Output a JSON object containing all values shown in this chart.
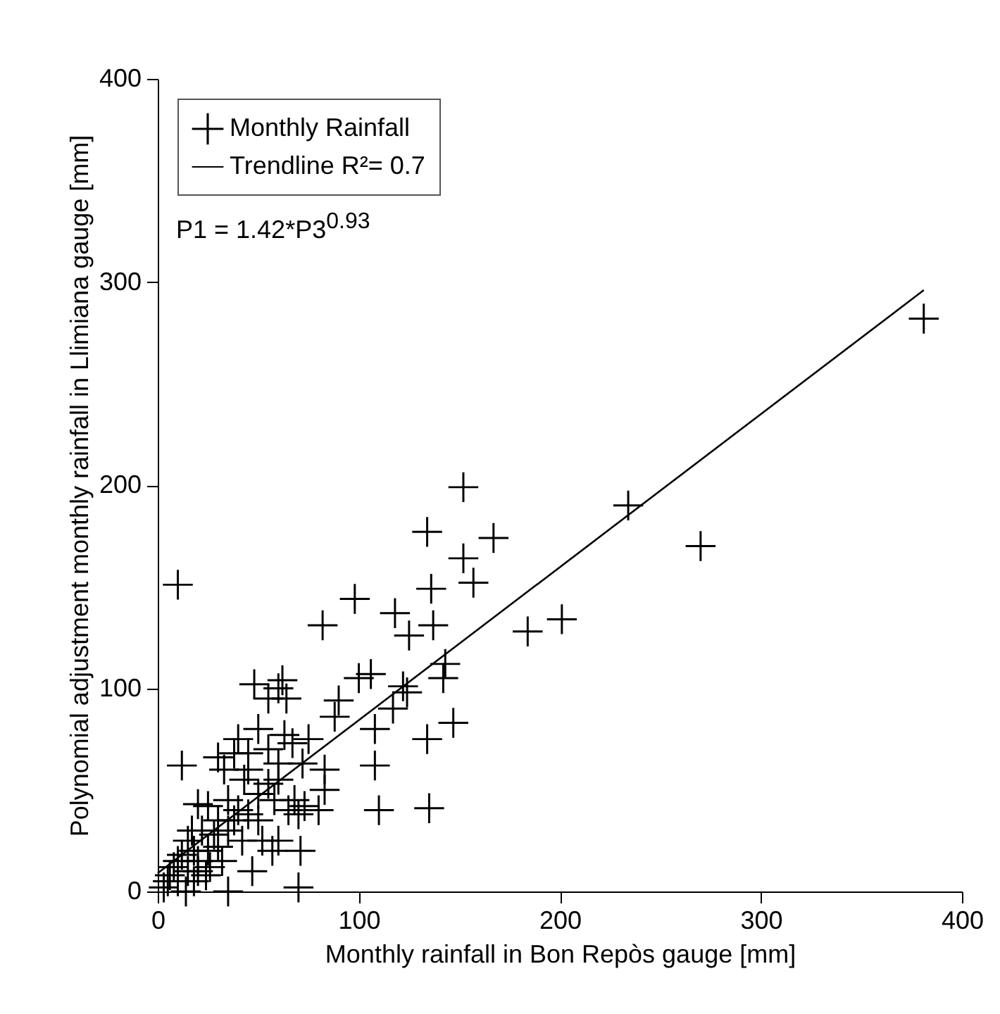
{
  "chart_data": {
    "type": "scatter",
    "xlabel": "Monthly rainfall in Bon Repòs gauge [mm]",
    "ylabel": "Polynomial adjustment monthly rainfall in Llimiana gauge [mm]",
    "xlim": [
      0,
      400
    ],
    "ylim": [
      0,
      400
    ],
    "xticks": [
      0,
      100,
      200,
      300,
      400
    ],
    "yticks": [
      0,
      100,
      200,
      300,
      400
    ],
    "grid": false,
    "legend": "top left",
    "line_style": "solid",
    "annotations": [
      "P1 = 1.42*P3$^{0.93}$"
    ],
    "series": [
      {
        "name": "Monthly Rainfall",
        "color": "#000000",
        "marker": "cross",
        "x": [
          10,
          381,
          234,
          270,
          152,
          134,
          167,
          152,
          157,
          98,
          82,
          118,
          125,
          137,
          136,
          184,
          201,
          143,
          142,
          147,
          134,
          135,
          110,
          108,
          108,
          122,
          124,
          117,
          106,
          100,
          90,
          88,
          83,
          83,
          80,
          73,
          70,
          70,
          71,
          57,
          35,
          47,
          60,
          12,
          30,
          48,
          60,
          62,
          55,
          64,
          67,
          63,
          72,
          75,
          50,
          40,
          43,
          45,
          50,
          55,
          60,
          58,
          40,
          35,
          30,
          25,
          20,
          22,
          15,
          18,
          20,
          25,
          28,
          30,
          35,
          38,
          45,
          50,
          52,
          42,
          15,
          10,
          5,
          8,
          12,
          3,
          6,
          18,
          20,
          24,
          14,
          10,
          17,
          26,
          32,
          65,
          68,
          60,
          55,
          45,
          38,
          33
        ],
        "values": [
          151,
          282,
          190,
          170,
          199,
          177,
          174,
          164,
          152,
          144,
          131,
          137,
          126,
          131,
          149,
          128,
          134,
          112,
          105,
          83,
          75,
          41,
          40,
          62,
          80,
          101,
          98,
          90,
          107,
          105,
          94,
          86,
          60,
          50,
          40,
          42,
          38,
          2,
          20,
          20,
          0,
          10,
          25,
          62,
          66,
          102,
          100,
          104,
          95,
          95,
          73,
          77,
          63,
          75,
          80,
          75,
          55,
          60,
          48,
          53,
          55,
          45,
          40,
          45,
          35,
          42,
          43,
          30,
          25,
          20,
          15,
          20,
          28,
          22,
          30,
          35,
          38,
          35,
          25,
          25,
          10,
          5,
          5,
          12,
          18,
          2,
          8,
          5,
          10,
          8,
          0,
          15,
          30,
          12,
          15,
          40,
          45,
          63,
          70,
          68,
          68,
          60
        ]
      },
      {
        "name": "Trendline R²= 0.7",
        "type": "line",
        "color": "#000000",
        "x": [
          0,
          381
        ],
        "values": [
          9,
          296
        ]
      }
    ]
  }
}
